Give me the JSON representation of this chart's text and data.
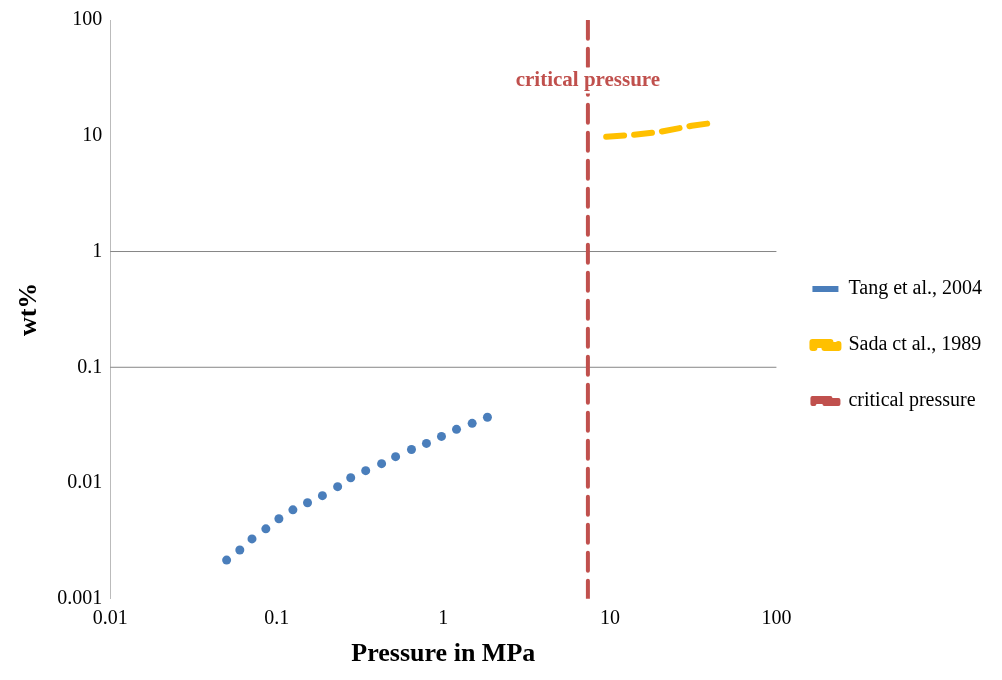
{
  "chart_data": {
    "type": "scatter",
    "xlabel": "Pressure in MPa",
    "ylabel": "wt%",
    "log": "xy",
    "xlim": [
      0.01,
      100
    ],
    "ylim": [
      0.001,
      100
    ],
    "xticks": [
      0.01,
      0.1,
      1,
      10,
      100
    ],
    "yticks": [
      0.001,
      0.01,
      0.1,
      1,
      10,
      100
    ],
    "grid": false,
    "legend": "right",
    "series": [
      {
        "name": "Tang et al., 2004",
        "marker": "circle",
        "color": "#4a7ebb",
        "x": [
          0.05,
          0.06,
          0.071,
          0.086,
          0.103,
          0.125,
          0.153,
          0.188,
          0.232,
          0.278,
          0.342,
          0.426,
          0.517,
          0.644,
          0.792,
          0.975,
          1.2,
          1.49,
          1.84
        ],
        "values": [
          0.00216,
          0.00264,
          0.00329,
          0.00402,
          0.00491,
          0.00587,
          0.00676,
          0.00778,
          0.00931,
          0.0111,
          0.0128,
          0.0147,
          0.0169,
          0.0195,
          0.022,
          0.0253,
          0.0291,
          0.0328,
          0.037
        ]
      },
      {
        "name": "Sada ct al., 1989",
        "type": "line",
        "marker": "none",
        "line_style": "dashed",
        "color": "#ffc000",
        "x": [
          9.5,
          14,
          20,
          31,
          41
        ],
        "values": [
          9.8,
          10.2,
          10.8,
          12.2,
          12.9
        ]
      },
      {
        "name": "critical pressure",
        "type": "line",
        "marker": "none",
        "line_style": "dashed",
        "color": "#c0504d",
        "x": [
          7.38,
          7.38
        ],
        "values": [
          0.001,
          100
        ]
      }
    ],
    "ref_lines": [
      {
        "axis": "y",
        "value": 1,
        "color": "#868686"
      },
      {
        "axis": "y",
        "value": 0.1,
        "color": "#868686"
      }
    ],
    "annotations": [
      {
        "text": "critical pressure",
        "x": 7.38,
        "y": 30
      }
    ]
  }
}
